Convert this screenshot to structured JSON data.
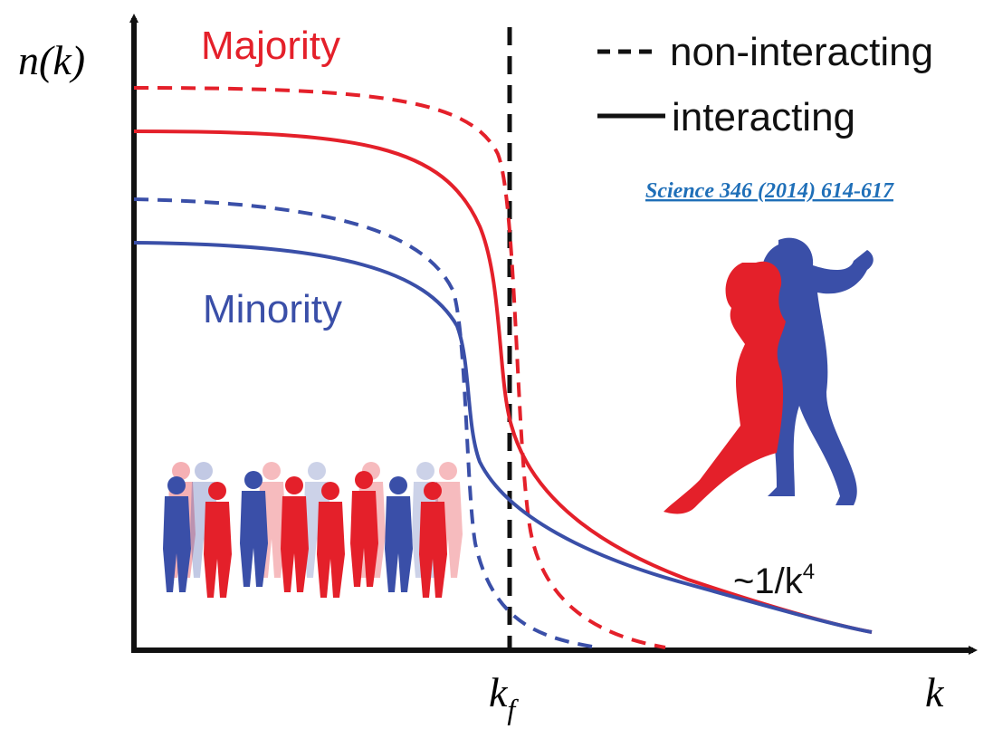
{
  "axes": {
    "y_label": "n(k)",
    "x_label": "k",
    "kf_main": "k",
    "kf_sub": "f"
  },
  "labels": {
    "majority": "Majority",
    "minority": "Minority",
    "tail_main": "~1/k",
    "tail_sup": "4"
  },
  "legend": {
    "dashed": "non-interacting",
    "solid": "interacting"
  },
  "reference": "Science 346 (2014) 614-617"
}
